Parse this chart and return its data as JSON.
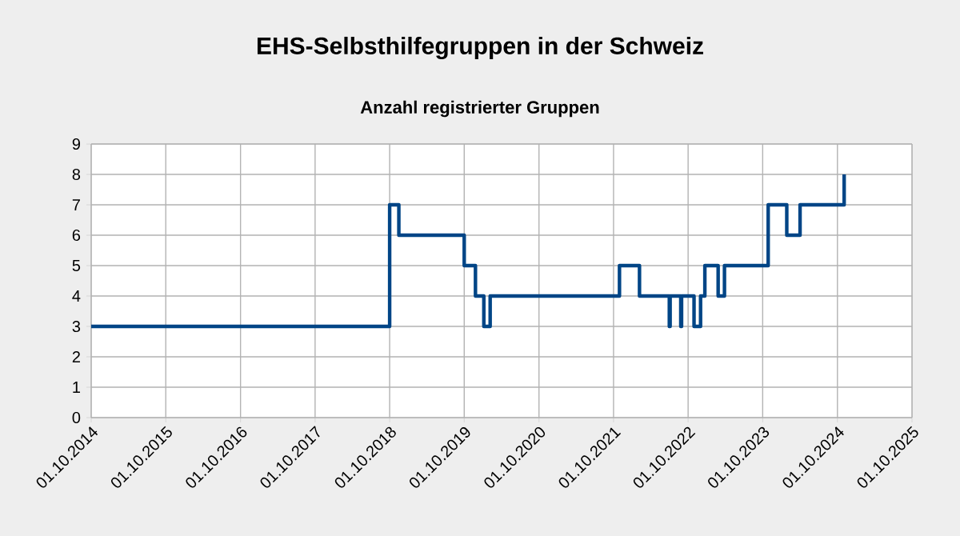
{
  "chart_data": {
    "type": "step",
    "title": "EHS-Selbsthilfegruppen in der Schweiz",
    "subtitle": "Anzahl registrierter Gruppen",
    "x": [
      "2014-10-01",
      "2018-10-01",
      "2018-11-15",
      "2019-10-01",
      "2019-11-25",
      "2020-01-05",
      "2020-02-05",
      "2021-10-30",
      "2022-02-05",
      "2022-07-01",
      "2022-07-05",
      "2022-08-26",
      "2022-08-30",
      "2022-10-30",
      "2022-12-01",
      "2022-12-22",
      "2023-02-25",
      "2023-03-28",
      "2023-10-28",
      "2024-01-27",
      "2024-04-01",
      "2024-11-03"
    ],
    "series": [
      {
        "color": "#004586",
        "values": [
          3,
          7,
          6,
          5,
          4,
          3,
          4,
          5,
          4,
          3,
          4,
          3,
          4,
          3,
          4,
          5,
          4,
          5,
          7,
          6,
          7,
          8
        ]
      }
    ],
    "xlim": [
      "2014-10-01",
      "2025-10-01"
    ],
    "xticks": [
      {
        "value": "2014-10-01",
        "label": "01.10.2014"
      },
      {
        "value": "2015-10-01",
        "label": "01.10.2015"
      },
      {
        "value": "2016-10-01",
        "label": "01.10.2016"
      },
      {
        "value": "2017-10-01",
        "label": "01.10.2017"
      },
      {
        "value": "2018-10-01",
        "label": "01.10.2018"
      },
      {
        "value": "2019-10-01",
        "label": "01.10.2019"
      },
      {
        "value": "2020-10-01",
        "label": "01.10.2020"
      },
      {
        "value": "2021-10-01",
        "label": "01.10.2021"
      },
      {
        "value": "2022-10-01",
        "label": "01.10.2022"
      },
      {
        "value": "2023-10-01",
        "label": "01.10.2023"
      },
      {
        "value": "2024-10-01",
        "label": "01.10.2024"
      },
      {
        "value": "2025-10-01",
        "label": "01.10.2025"
      }
    ],
    "ylim": [
      0,
      9
    ],
    "yticks": [
      0,
      1,
      2,
      3,
      4,
      5,
      6,
      7,
      8,
      9
    ],
    "grid": true,
    "line_style": "solid",
    "marker": "none"
  }
}
